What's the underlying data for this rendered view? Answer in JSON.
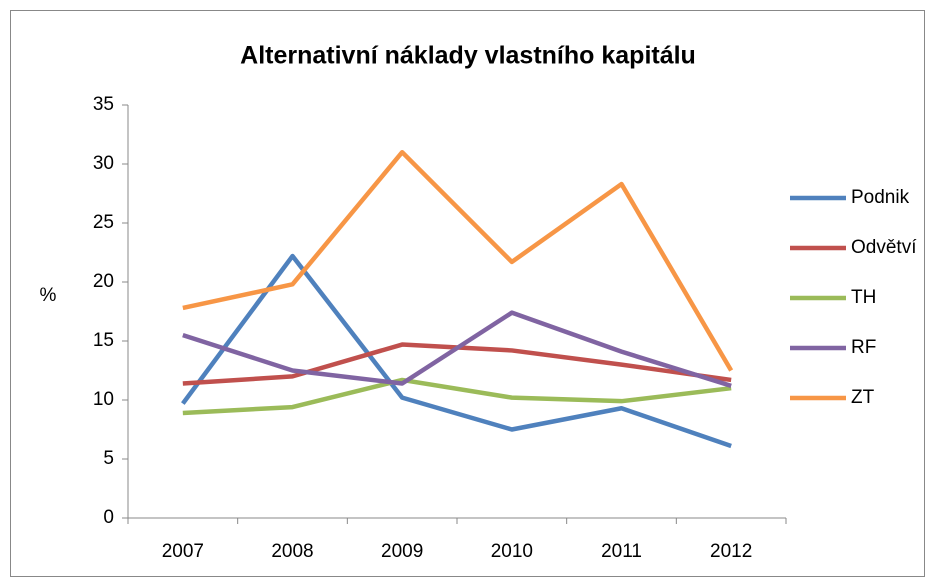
{
  "chart_data": {
    "type": "line",
    "title": "Alternativní náklady vlastního kapitálu",
    "y_label": "%",
    "categories": [
      "2007",
      "2008",
      "2009",
      "2010",
      "2011",
      "2012"
    ],
    "series": [
      {
        "name": "Podnik",
        "color": "#4f81bd",
        "values": [
          9.7,
          22.2,
          10.2,
          7.5,
          9.3,
          6.1
        ]
      },
      {
        "name": "Odvětví",
        "color": "#c0504d",
        "values": [
          11.4,
          12.0,
          14.7,
          14.2,
          13.0,
          11.7
        ]
      },
      {
        "name": "TH",
        "color": "#9bbb59",
        "values": [
          8.9,
          9.4,
          11.7,
          10.2,
          9.9,
          11.0
        ]
      },
      {
        "name": "RF",
        "color": "#8064a2",
        "values": [
          15.5,
          12.5,
          11.4,
          17.4,
          14.1,
          11.2
        ]
      },
      {
        "name": "ZT",
        "color": "#f79646",
        "values": [
          17.8,
          19.8,
          31.0,
          21.7,
          28.3,
          12.5
        ]
      }
    ],
    "ylim": [
      0,
      35
    ],
    "yticks": [
      0,
      5,
      10,
      15,
      20,
      25,
      30,
      35
    ],
    "grid": false,
    "legend": "right"
  }
}
